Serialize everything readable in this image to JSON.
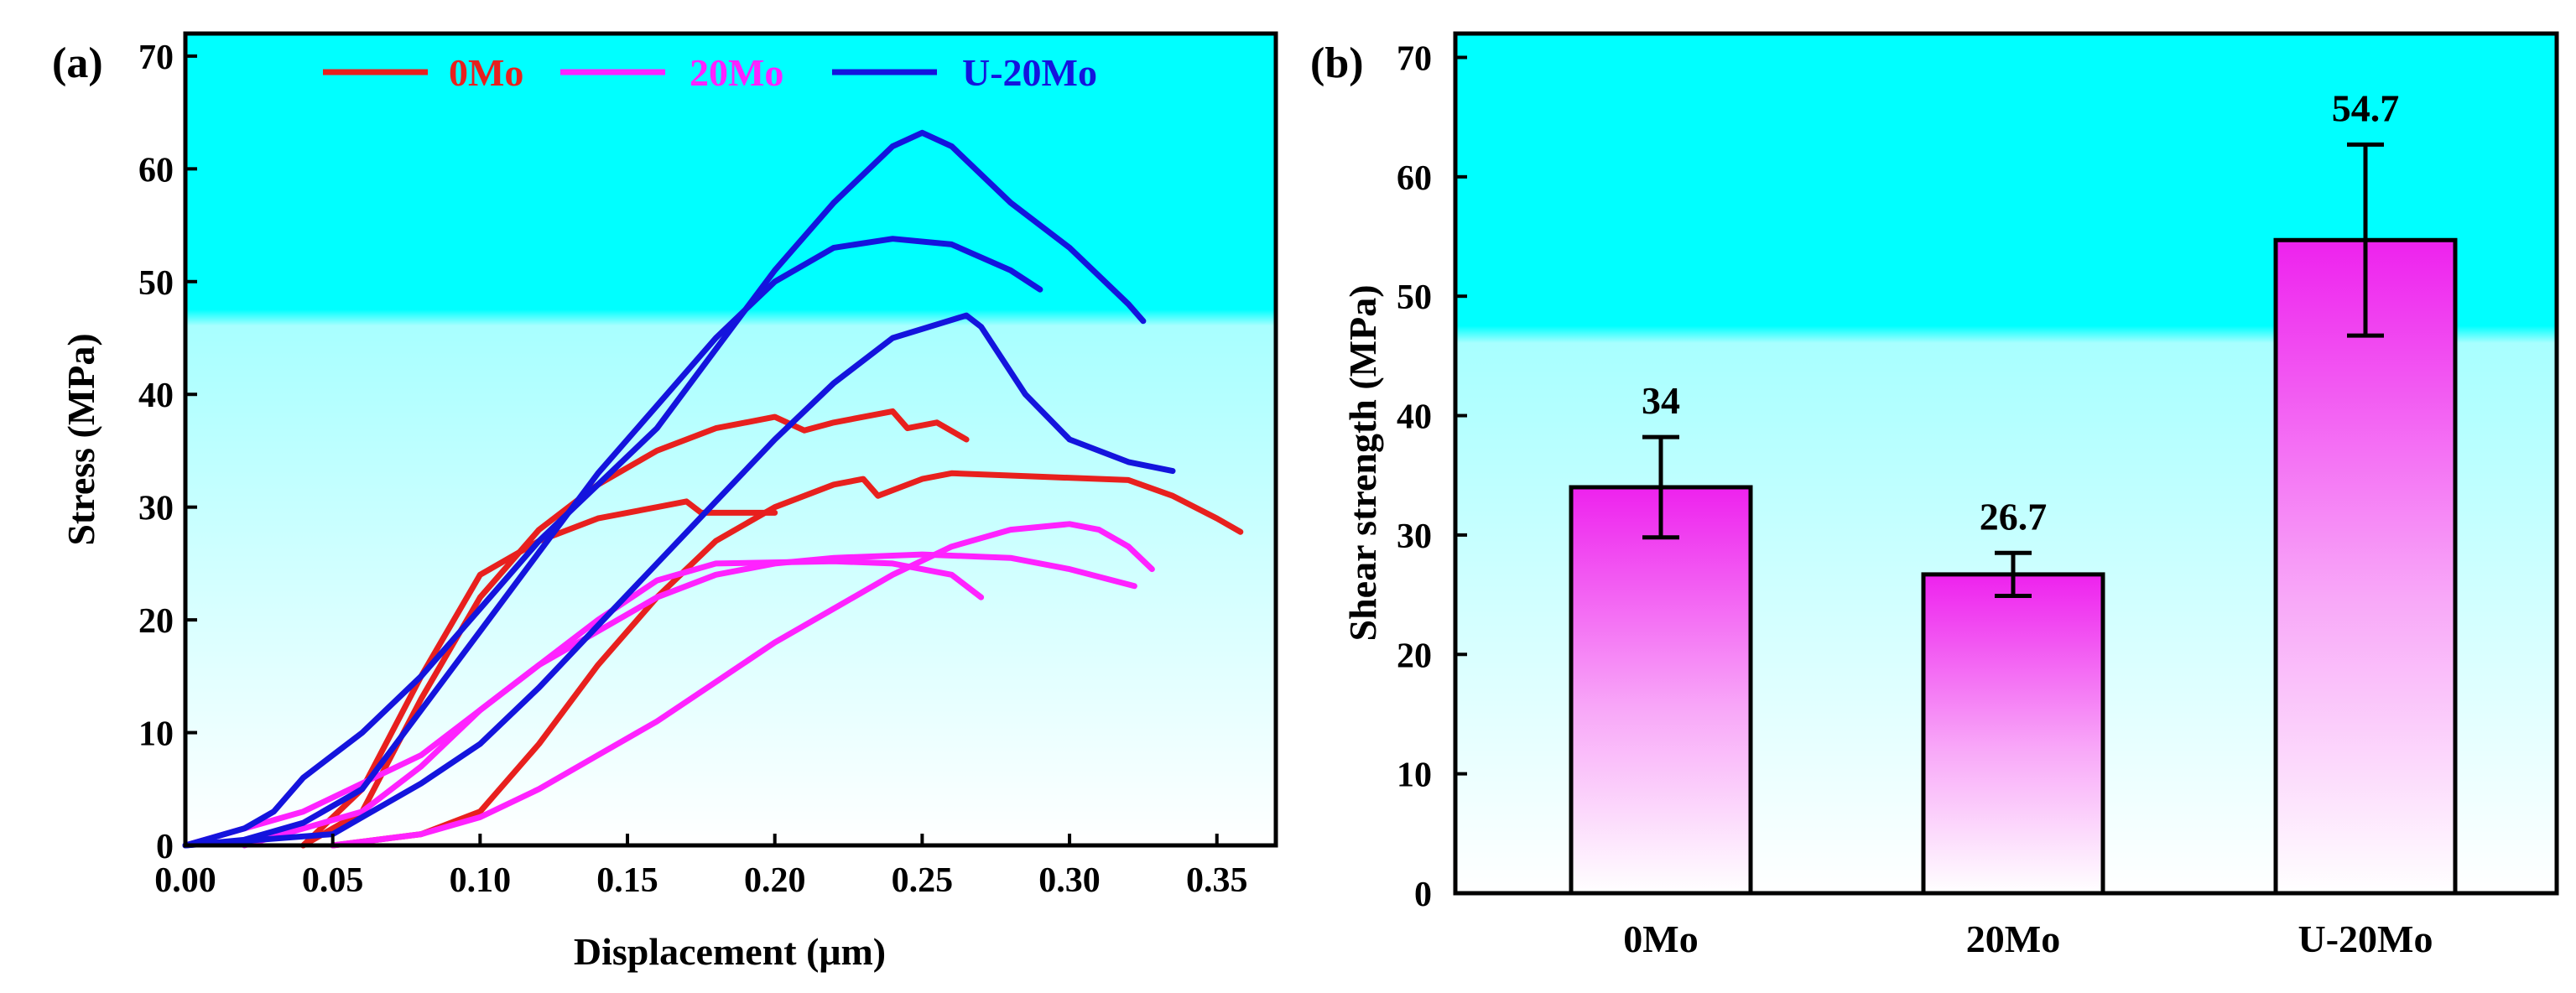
{
  "chart_data": [
    {
      "type": "line",
      "panel_label": "(a)",
      "xlabel": "Displacement (μm)",
      "ylabel": "Stress (MPa)",
      "xlim": [
        0,
        0.37
      ],
      "ylim": [
        0,
        72
      ],
      "x_ticks": [
        "0.00",
        "0.05",
        "0.10",
        "0.15",
        "0.20",
        "0.25",
        "0.30",
        "0.35"
      ],
      "x_tick_values": [
        0,
        0.05,
        0.1,
        0.15,
        0.2,
        0.25,
        0.3,
        0.35
      ],
      "y_ticks": [
        "0",
        "10",
        "20",
        "30",
        "40",
        "50",
        "60",
        "70"
      ],
      "y_tick_values": [
        0,
        10,
        20,
        30,
        40,
        50,
        60,
        70
      ],
      "background": "gradient cyan (top) to white (bottom)",
      "legend_position": "top-center",
      "series": [
        {
          "name": "0Mo",
          "color": "#e8201e",
          "curves": [
            [
              [
                0.04,
                0
              ],
              [
                0.06,
                5
              ],
              [
                0.08,
                15
              ],
              [
                0.1,
                24
              ],
              [
                0.12,
                27
              ],
              [
                0.14,
                29
              ],
              [
                0.16,
                30
              ],
              [
                0.17,
                30.5
              ],
              [
                0.175,
                29.5
              ],
              [
                0.2,
                29.5
              ]
            ],
            [
              [
                0.04,
                0
              ],
              [
                0.06,
                3
              ],
              [
                0.08,
                13
              ],
              [
                0.1,
                22
              ],
              [
                0.12,
                28
              ],
              [
                0.14,
                32
              ],
              [
                0.16,
                35
              ],
              [
                0.18,
                37
              ],
              [
                0.2,
                38
              ],
              [
                0.21,
                36.8
              ],
              [
                0.22,
                37.5
              ],
              [
                0.24,
                38.5
              ],
              [
                0.245,
                37
              ],
              [
                0.255,
                37.5
              ],
              [
                0.265,
                36
              ]
            ],
            [
              [
                0.05,
                0
              ],
              [
                0.08,
                1
              ],
              [
                0.1,
                3
              ],
              [
                0.12,
                9
              ],
              [
                0.14,
                16
              ],
              [
                0.16,
                22
              ],
              [
                0.18,
                27
              ],
              [
                0.2,
                30
              ],
              [
                0.22,
                32
              ],
              [
                0.23,
                32.5
              ],
              [
                0.235,
                31
              ],
              [
                0.25,
                32.5
              ],
              [
                0.26,
                33
              ],
              [
                0.29,
                32.7
              ],
              [
                0.32,
                32.4
              ],
              [
                0.335,
                31
              ],
              [
                0.35,
                29
              ],
              [
                0.358,
                27.8
              ]
            ]
          ]
        },
        {
          "name": "20Mo",
          "color": "#ff22ff",
          "curves": [
            [
              [
                0.0,
                0
              ],
              [
                0.04,
                3
              ],
              [
                0.08,
                8
              ],
              [
                0.1,
                12
              ],
              [
                0.12,
                16
              ],
              [
                0.14,
                20
              ],
              [
                0.16,
                23.5
              ],
              [
                0.18,
                25
              ],
              [
                0.22,
                25.2
              ],
              [
                0.24,
                25
              ],
              [
                0.26,
                24
              ],
              [
                0.27,
                22
              ]
            ],
            [
              [
                0.02,
                0
              ],
              [
                0.06,
                3
              ],
              [
                0.08,
                7
              ],
              [
                0.1,
                12
              ],
              [
                0.12,
                16
              ],
              [
                0.14,
                19
              ],
              [
                0.16,
                22
              ],
              [
                0.18,
                24
              ],
              [
                0.2,
                25
              ],
              [
                0.22,
                25.5
              ],
              [
                0.25,
                25.8
              ],
              [
                0.28,
                25.5
              ],
              [
                0.3,
                24.5
              ],
              [
                0.322,
                23
              ]
            ],
            [
              [
                0.05,
                0
              ],
              [
                0.08,
                1
              ],
              [
                0.1,
                2.5
              ],
              [
                0.12,
                5
              ],
              [
                0.14,
                8
              ],
              [
                0.16,
                11
              ],
              [
                0.18,
                14.5
              ],
              [
                0.2,
                18
              ],
              [
                0.22,
                21
              ],
              [
                0.24,
                24
              ],
              [
                0.26,
                26.5
              ],
              [
                0.28,
                28
              ],
              [
                0.3,
                28.5
              ],
              [
                0.31,
                28
              ],
              [
                0.32,
                26.5
              ],
              [
                0.328,
                24.5
              ]
            ]
          ]
        },
        {
          "name": "U-20Mo",
          "color": "#1414dd",
          "curves": [
            [
              [
                0.0,
                0
              ],
              [
                0.02,
                1.5
              ],
              [
                0.03,
                3
              ],
              [
                0.04,
                6
              ],
              [
                0.06,
                10
              ],
              [
                0.08,
                15
              ],
              [
                0.1,
                21
              ],
              [
                0.12,
                27
              ],
              [
                0.14,
                32
              ],
              [
                0.16,
                37
              ],
              [
                0.18,
                44
              ],
              [
                0.2,
                51
              ],
              [
                0.22,
                57
              ],
              [
                0.24,
                62
              ],
              [
                0.25,
                63.2
              ],
              [
                0.26,
                62
              ],
              [
                0.28,
                57
              ],
              [
                0.3,
                53
              ],
              [
                0.32,
                48
              ],
              [
                0.325,
                46.5
              ]
            ],
            [
              [
                0.0,
                0
              ],
              [
                0.02,
                0.5
              ],
              [
                0.04,
                2
              ],
              [
                0.06,
                5
              ],
              [
                0.08,
                12
              ],
              [
                0.1,
                19
              ],
              [
                0.12,
                26
              ],
              [
                0.14,
                33
              ],
              [
                0.16,
                39
              ],
              [
                0.18,
                45
              ],
              [
                0.2,
                50
              ],
              [
                0.22,
                53
              ],
              [
                0.24,
                53.8
              ],
              [
                0.26,
                53.3
              ],
              [
                0.28,
                51
              ],
              [
                0.29,
                49.3
              ]
            ],
            [
              [
                0.0,
                0
              ],
              [
                0.05,
                1
              ],
              [
                0.06,
                2.5
              ],
              [
                0.08,
                5.5
              ],
              [
                0.1,
                9
              ],
              [
                0.12,
                14
              ],
              [
                0.14,
                19.5
              ],
              [
                0.16,
                25
              ],
              [
                0.18,
                30.5
              ],
              [
                0.2,
                36
              ],
              [
                0.22,
                41
              ],
              [
                0.24,
                45
              ],
              [
                0.265,
                47
              ],
              [
                0.27,
                46
              ],
              [
                0.285,
                40
              ],
              [
                0.3,
                36
              ],
              [
                0.32,
                34
              ],
              [
                0.335,
                33.2
              ]
            ]
          ]
        }
      ]
    },
    {
      "type": "bar",
      "panel_label": "(b)",
      "xlabel": "",
      "ylabel": "Shear strength (MPa)",
      "categories": [
        "0Mo",
        "20Mo",
        "U-20Mo"
      ],
      "values": [
        34,
        26.7,
        54.7
      ],
      "value_labels": [
        "34",
        "26.7",
        "54.7"
      ],
      "errors": [
        4.2,
        1.8,
        8.0
      ],
      "ylim": [
        0,
        72
      ],
      "y_ticks": [
        "0",
        "10",
        "20",
        "30",
        "40",
        "50",
        "60",
        "70"
      ],
      "y_tick_values": [
        0,
        10,
        20,
        30,
        40,
        50,
        60,
        70
      ],
      "bar_fill": "gradient magenta (top) to white (bottom)",
      "background": "gradient cyan (top) to white (bottom)"
    }
  ]
}
